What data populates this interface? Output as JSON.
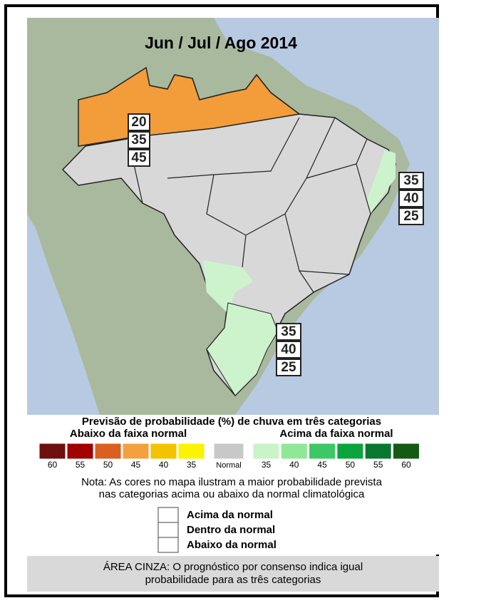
{
  "header": {
    "title": "Jun / Jul / Ago 2014"
  },
  "probability_boxes": [
    {
      "values": [
        20,
        35,
        45
      ]
    },
    {
      "values": [
        35,
        40,
        25
      ]
    },
    {
      "values": [
        35,
        40,
        25
      ]
    }
  ],
  "legend": {
    "title": "Previsão de probabilidade (%) de chuva em três categorias",
    "below_label": "Abaixo da faixa normal",
    "above_label": "Acima da faixa normal",
    "scale": [
      {
        "label": 60,
        "color": "#6e1010"
      },
      {
        "label": 55,
        "color": "#a00000"
      },
      {
        "label": 50,
        "color": "#d9601e"
      },
      {
        "label": 45,
        "color": "#f4a040"
      },
      {
        "label": 40,
        "color": "#f4c200"
      },
      {
        "label": 35,
        "color": "#fcf300"
      },
      {
        "label": "Normal",
        "color": "#c8c8c8"
      },
      {
        "label": 35,
        "color": "#c8f4c8"
      },
      {
        "label": 40,
        "color": "#90e896"
      },
      {
        "label": 45,
        "color": "#3cc864"
      },
      {
        "label": 50,
        "color": "#0aa43c"
      },
      {
        "label": 55,
        "color": "#087830"
      },
      {
        "label": 60,
        "color": "#145a14"
      }
    ]
  },
  "note": [
    "Nota: As cores no mapa ilustram a maior probabilidade prevista",
    "nas categorias acima ou abaixo da normal climatológica"
  ],
  "key": [
    "Acima da normal",
    "Dentro da normal",
    "Abaixo da normal"
  ],
  "footer": [
    "ÁREA CINZA: O prognóstico por consenso indica igual",
    "probabilidade para as três categorias"
  ]
}
